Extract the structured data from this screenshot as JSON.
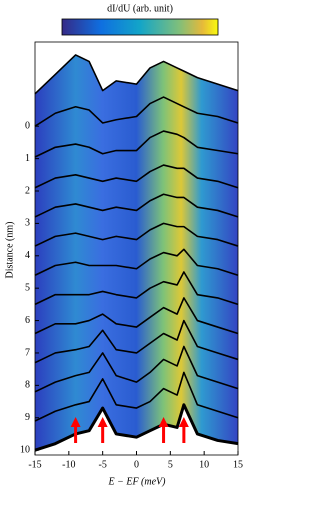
{
  "chart_data": {
    "type": "line",
    "colorbar_label": "dI/dU (arb. unit)",
    "x_label": "E − EF (meV)",
    "y_label": "Distance (nm)",
    "x": [
      -15,
      -12,
      -9,
      -7,
      -5,
      -3,
      0,
      2,
      4,
      6,
      7,
      9,
      12,
      15
    ],
    "series": [
      {
        "values": [
          -1.0,
          -1.6,
          -2.2,
          -2.0,
          -1.1,
          -1.4,
          -1.3,
          -1.8,
          -2.0,
          -1.8,
          -1.7,
          -1.5,
          -1.3,
          -1.1
        ]
      },
      {
        "values": [
          0,
          -0.4,
          -0.6,
          -0.5,
          -0.1,
          -0.2,
          -0.3,
          -0.7,
          -0.9,
          -0.7,
          -0.6,
          -0.4,
          -0.3,
          -0.1
        ]
      },
      {
        "values": [
          0.95,
          0.65,
          0.55,
          0.65,
          0.85,
          0.75,
          0.75,
          0.35,
          0.15,
          0.25,
          0.35,
          0.65,
          0.75,
          0.85
        ]
      },
      {
        "values": [
          1.9,
          1.6,
          1.5,
          1.6,
          1.7,
          1.6,
          1.7,
          1.4,
          1.2,
          1.3,
          1.3,
          1.6,
          1.7,
          1.9
        ]
      },
      {
        "values": [
          2.8,
          2.5,
          2.4,
          2.5,
          2.6,
          2.5,
          2.6,
          2.3,
          2.1,
          2.2,
          2.2,
          2.5,
          2.6,
          2.8
        ]
      },
      {
        "values": [
          3.7,
          3.4,
          3.3,
          3.4,
          3.5,
          3.4,
          3.5,
          3.2,
          3.0,
          3.1,
          3.1,
          3.4,
          3.5,
          3.7
        ]
      },
      {
        "values": [
          4.6,
          4.3,
          4.2,
          4.3,
          4.3,
          4.3,
          4.4,
          4.1,
          3.9,
          4.0,
          3.8,
          4.3,
          4.4,
          4.6
        ]
      },
      {
        "values": [
          5.5,
          5.2,
          5.2,
          5.2,
          5.1,
          5.2,
          5.3,
          5.0,
          4.8,
          4.9,
          4.5,
          5.2,
          5.3,
          5.5
        ]
      },
      {
        "values": [
          6.4,
          6.1,
          6.1,
          6.0,
          5.8,
          6.1,
          6.2,
          5.9,
          5.6,
          5.8,
          5.3,
          6.0,
          6.2,
          6.4
        ]
      },
      {
        "values": [
          7.3,
          7.0,
          6.9,
          6.8,
          6.3,
          6.9,
          7.0,
          6.7,
          6.4,
          6.6,
          6.0,
          6.8,
          7.0,
          7.2
        ]
      },
      {
        "values": [
          8.2,
          7.9,
          7.7,
          7.6,
          7.0,
          7.7,
          7.9,
          7.6,
          7.2,
          7.4,
          6.8,
          7.7,
          7.9,
          8.1
        ]
      },
      {
        "values": [
          9.1,
          8.8,
          8.6,
          8.5,
          7.8,
          8.6,
          8.7,
          8.5,
          8.1,
          8.3,
          7.6,
          8.6,
          8.8,
          9.0
        ]
      },
      {
        "values": [
          10.0,
          9.8,
          9.5,
          9.4,
          8.7,
          9.5,
          9.6,
          9.4,
          9.2,
          9.3,
          8.6,
          9.5,
          9.7,
          9.8
        ]
      }
    ],
    "line_color": "#000000",
    "arrow_color": "#ff0000",
    "arrows_x": [
      -9,
      -5,
      4,
      7
    ],
    "xlim": [
      -15,
      15
    ],
    "xticks": [
      -15,
      -10,
      -5,
      0,
      5,
      10,
      15
    ],
    "ylim": [
      -2.6,
      10.15
    ],
    "yticks": [
      0,
      1,
      2,
      3,
      4,
      5,
      6,
      7,
      8,
      9,
      10
    ],
    "y_inverted": true
  }
}
